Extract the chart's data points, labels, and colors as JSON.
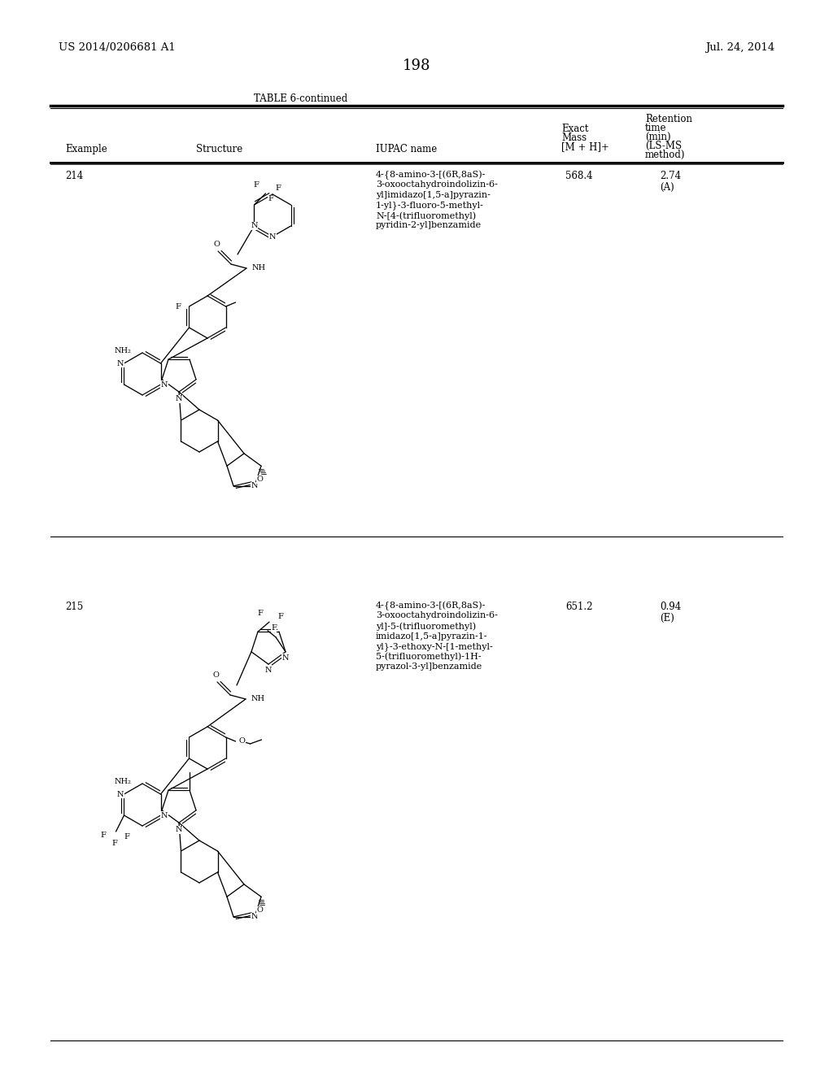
{
  "page_number": "198",
  "patent_number": "US 2014/0206681 A1",
  "patent_date": "Jul. 24, 2014",
  "table_title": "TABLE 6-continued",
  "col_example": "Example",
  "col_structure": "Structure",
  "col_iupac": "IUPAC name",
  "col_mass_line1": "Exact",
  "col_mass_line2": "Mass",
  "col_mass_line3": "[M + H]+",
  "col_ret_line1": "Retention",
  "col_ret_line2": "time",
  "col_ret_line3": "(min)",
  "col_ret_line4": "(LS-MS",
  "col_ret_line5": "method)",
  "row1_example": "214",
  "row1_iupac_lines": [
    "4-{8-amino-3-[(6R,8aS)-",
    "3-oxooctahydroindolizin-6-",
    "yl]imidazo[1,5-a]pyrazin-",
    "1-yl}-3-fluoro-5-methyl-",
    "N-[4-(trifluoromethyl)",
    "pyridin-2-yl]benzamide"
  ],
  "row1_mass": "568.4",
  "row1_ret_line1": "2.74",
  "row1_ret_line2": "(A)",
  "row2_example": "215",
  "row2_iupac_lines": [
    "4-{8-amino-3-[(6R,8aS)-",
    "3-oxooctahydroindolizin-6-",
    "yl]-5-(trifluoromethyl)",
    "imidazo[1,5-a]pyrazin-1-",
    "yl}-3-ethoxy-N-[1-methyl-",
    "5-(trifluoromethyl)-1H-",
    "pyrazol-3-yl]benzamide"
  ],
  "row2_mass": "651.2",
  "row2_ret_line1": "0.94",
  "row2_ret_line2": "(E)",
  "bg_color": "#ffffff",
  "text_color": "#000000",
  "lbl_fontsize": 7.0,
  "text_fontsize": 8.5,
  "header_fontsize": 8.5,
  "page_fontsize": 9.5
}
